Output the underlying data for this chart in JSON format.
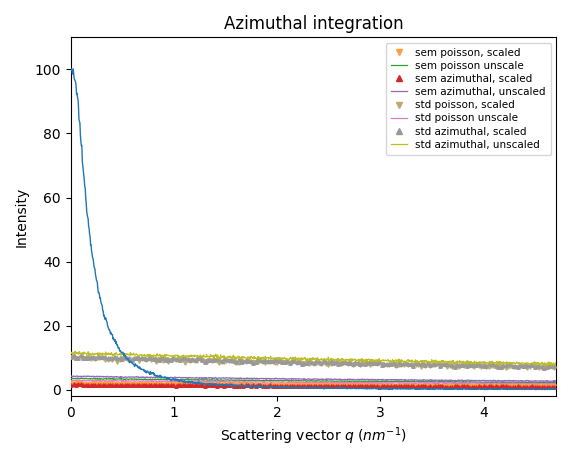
{
  "title": "Azimuthal integration",
  "xlabel": "Scattering vector $q$ ($nm^{-1}$)",
  "ylabel": "Intensity",
  "xlim": [
    0,
    4.7
  ],
  "ylim": [
    -2,
    110
  ],
  "q_min": 0.005,
  "q_max": 4.7,
  "n_points": 1000,
  "legend_entries": [
    "sem poisson, scaled",
    "sem poisson unscale",
    "sem azimuthal, scaled",
    "sem azimuthal, unscaled",
    "std poisson, scaled",
    "std poisson unscale",
    "std azimuthal, scaled",
    "std azimuthal, unscaled"
  ],
  "colors": {
    "main": "#1f77b4",
    "sem_poisson_scaled": "#FFA040",
    "sem_poisson_unscale": "#2ca02c",
    "sem_azimuthal_scaled": "#d62728",
    "sem_azimuthal_unscaled": "#9467bd",
    "std_poisson_scaled": "#BCAA70",
    "std_poisson_unscale": "#e377c2",
    "std_azimuthal_scaled": "#999999",
    "std_azimuthal_unscaled": "#bcbd22"
  },
  "figsize": [
    5.71,
    4.62
  ],
  "dpi": 100
}
